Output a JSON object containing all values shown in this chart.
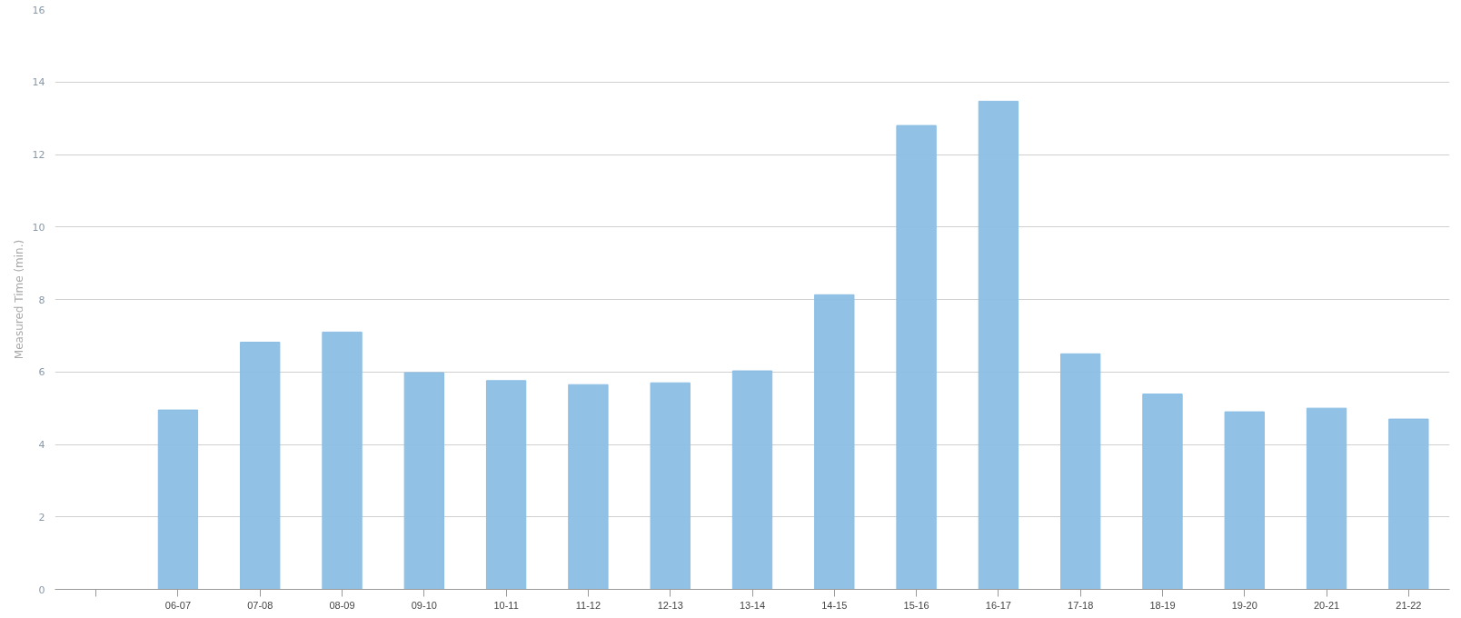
{
  "chart_data": {
    "type": "bar",
    "ylabel": "Measured Time (min.)",
    "categories": [
      null,
      "06-07",
      "07-08",
      "08-09",
      "09-10",
      "10-11",
      "11-12",
      "12-13",
      "13-14",
      "14-15",
      "15-16",
      "16-17",
      "17-18",
      "18-19",
      "19-20",
      "20-21",
      "21-22"
    ],
    "values": [
      null,
      4.95,
      6.82,
      7.1,
      5.98,
      5.76,
      5.65,
      5.7,
      6.03,
      8.13,
      12.8,
      13.47,
      6.5,
      5.39,
      4.9,
      5.0,
      4.7
    ],
    "color": "#8bbee4",
    "ylim": [
      0,
      16
    ],
    "yticks": [
      0,
      2,
      4,
      6,
      8,
      10,
      12,
      14,
      16
    ],
    "grid": "y"
  }
}
